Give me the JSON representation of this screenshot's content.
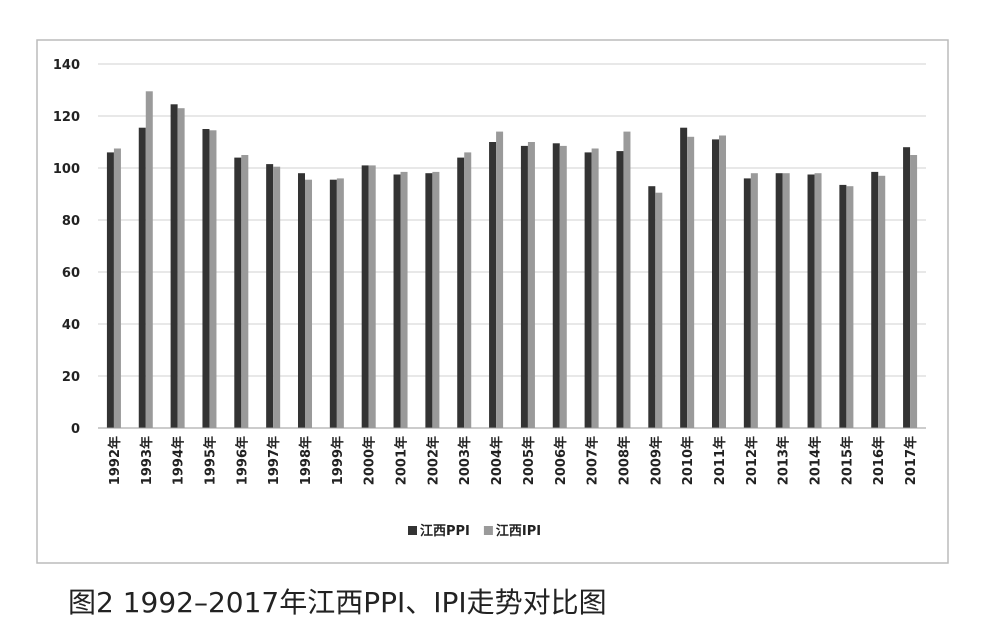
{
  "chart_data": {
    "type": "bar",
    "caption": "图2 1992–2017年江西PPI、IPI走势对比图",
    "categories": [
      "1992年",
      "1993年",
      "1994年",
      "1995年",
      "1996年",
      "1997年",
      "1998年",
      "1999年",
      "2000年",
      "2001年",
      "2002年",
      "2003年",
      "2004年",
      "2005年",
      "2006年",
      "2007年",
      "2008年",
      "2009年",
      "2010年",
      "2011年",
      "2012年",
      "2013年",
      "2014年",
      "2015年",
      "2016年",
      "2017年"
    ],
    "series": [
      {
        "name": "江西PPI",
        "color": "#333333",
        "values": [
          106,
          115.5,
          124.5,
          115,
          104,
          101.5,
          98,
          95.5,
          101,
          97.5,
          98,
          104,
          110,
          108.5,
          109.5,
          106,
          106.5,
          93,
          115.5,
          111,
          96,
          98,
          97.5,
          93.5,
          98.5,
          108
        ]
      },
      {
        "name": "江西IPI",
        "color": "#9a9a9a",
        "values": [
          107.5,
          129.5,
          123,
          114.5,
          105,
          100.5,
          95.5,
          96,
          101,
          98.5,
          98.5,
          106,
          114,
          110,
          108.5,
          107.5,
          114,
          90.5,
          112,
          112.5,
          98,
          98,
          98,
          93,
          97,
          105
        ]
      }
    ],
    "ylim": [
      0,
      140
    ],
    "yticks": [
      0,
      20,
      40,
      60,
      80,
      100,
      120,
      140
    ],
    "grid": true,
    "legend": "bottom"
  }
}
